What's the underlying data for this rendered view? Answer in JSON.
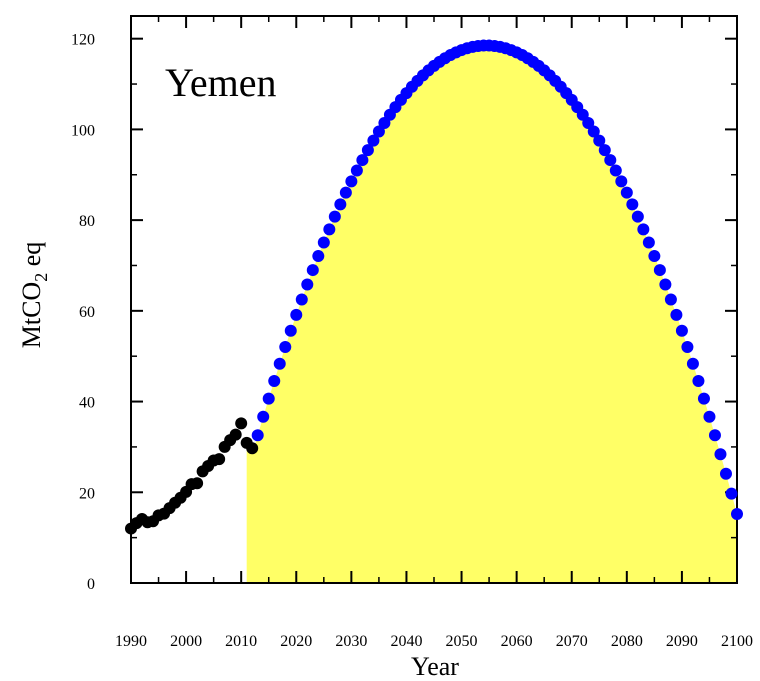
{
  "chart_data": {
    "type": "scatter",
    "title": "Yemen",
    "xlabel": "Year",
    "ylabel_main": "MtCO",
    "ylabel_sub": "2",
    "ylabel_tail": " eq",
    "xlim": [
      1990,
      2100
    ],
    "ylim": [
      0,
      125
    ],
    "x_ticks": [
      1990,
      2000,
      2010,
      2020,
      2030,
      2040,
      2050,
      2060,
      2070,
      2080,
      2090,
      2100
    ],
    "y_ticks": [
      0,
      20,
      40,
      60,
      80,
      100,
      120
    ],
    "grid": false,
    "fill_color": "#ffff66",
    "historical": {
      "color": "#000000",
      "x": [
        1990,
        1991,
        1992,
        1993,
        1994,
        1995,
        1996,
        1997,
        1998,
        1999,
        2000,
        2001,
        2002,
        2003,
        2004,
        2005,
        2006,
        2007,
        2008,
        2009,
        2010,
        2011,
        2012
      ],
      "y": [
        12.0,
        13.2,
        14.1,
        13.4,
        13.6,
        14.9,
        15.3,
        16.5,
        17.7,
        18.8,
        20.1,
        21.8,
        22.0,
        24.6,
        25.8,
        27.0,
        27.3,
        30.0,
        31.5,
        32.7,
        35.2,
        30.9,
        29.7
      ]
    },
    "projection": {
      "color": "#0000ff",
      "start_year": 2012,
      "end_year": 2100,
      "peak_year": 2054.5,
      "peak_value": 118.5,
      "end_value": 15.2
    }
  }
}
